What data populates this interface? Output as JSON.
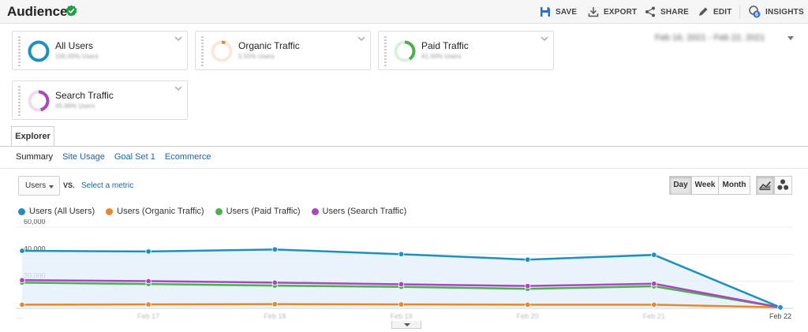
{
  "header": {
    "title": "Audiences",
    "actions": [
      {
        "label": "SAVE",
        "icon": "floppy-disk-icon"
      },
      {
        "label": "EXPORT",
        "icon": "download-icon"
      },
      {
        "label": "SHARE",
        "icon": "share-icon"
      },
      {
        "label": "EDIT",
        "icon": "pencil-icon"
      },
      {
        "label": "INSIGHTS",
        "icon": "insights-icon",
        "badge": "6"
      }
    ]
  },
  "segments": [
    {
      "name": "All Users",
      "sub": "100.00% Users",
      "color": "#1f8fc0",
      "fraction": 1.0
    },
    {
      "name": "Organic Traffic",
      "sub": "5.55% Users",
      "color": "#e8862b",
      "fraction": 0.06
    },
    {
      "name": "Paid Traffic",
      "sub": "41.00% Users",
      "color": "#4caf50",
      "fraction": 0.41
    },
    {
      "name": "Search Traffic",
      "sub": "45.96% Users",
      "color": "#ab47bc",
      "fraction": 0.46
    }
  ],
  "date_range": "Feb 16, 2021 - Feb 22, 2021",
  "tabs": {
    "explorer": "Explorer"
  },
  "subtabs": [
    "Summary",
    "Site Usage",
    "Goal Set 1",
    "Ecommerce"
  ],
  "controls": {
    "metric": "Users",
    "vs": "VS.",
    "select_metric": "Select a metric",
    "periods": [
      "Day",
      "Week",
      "Month"
    ],
    "active_period": "Day"
  },
  "chart_data": {
    "type": "line",
    "categories": [
      "...",
      "Feb 17",
      "Feb 18",
      "Feb 19",
      "Feb 20",
      "Feb 21",
      "Feb 22"
    ],
    "ylim": [
      0,
      60000
    ],
    "yticks": [
      "60,000",
      "40,000",
      "20,000"
    ],
    "series": [
      {
        "name": "Users (All Users)",
        "color": "#1f8fc0",
        "values": [
          42500,
          42000,
          43500,
          40000,
          36000,
          39500,
          700
        ]
      },
      {
        "name": "Users (Organic Traffic)",
        "color": "#e8862b",
        "values": [
          2700,
          2900,
          3100,
          2900,
          2700,
          2700,
          700
        ]
      },
      {
        "name": "Users (Paid Traffic)",
        "color": "#4caf50",
        "values": [
          19000,
          18000,
          16800,
          15900,
          14400,
          16300,
          700
        ]
      },
      {
        "name": "Users (Search Traffic)",
        "color": "#ab47bc",
        "values": [
          20800,
          20100,
          19000,
          17800,
          16500,
          18200,
          700
        ]
      }
    ],
    "area_series": "Users (All Users)",
    "grid": true
  }
}
